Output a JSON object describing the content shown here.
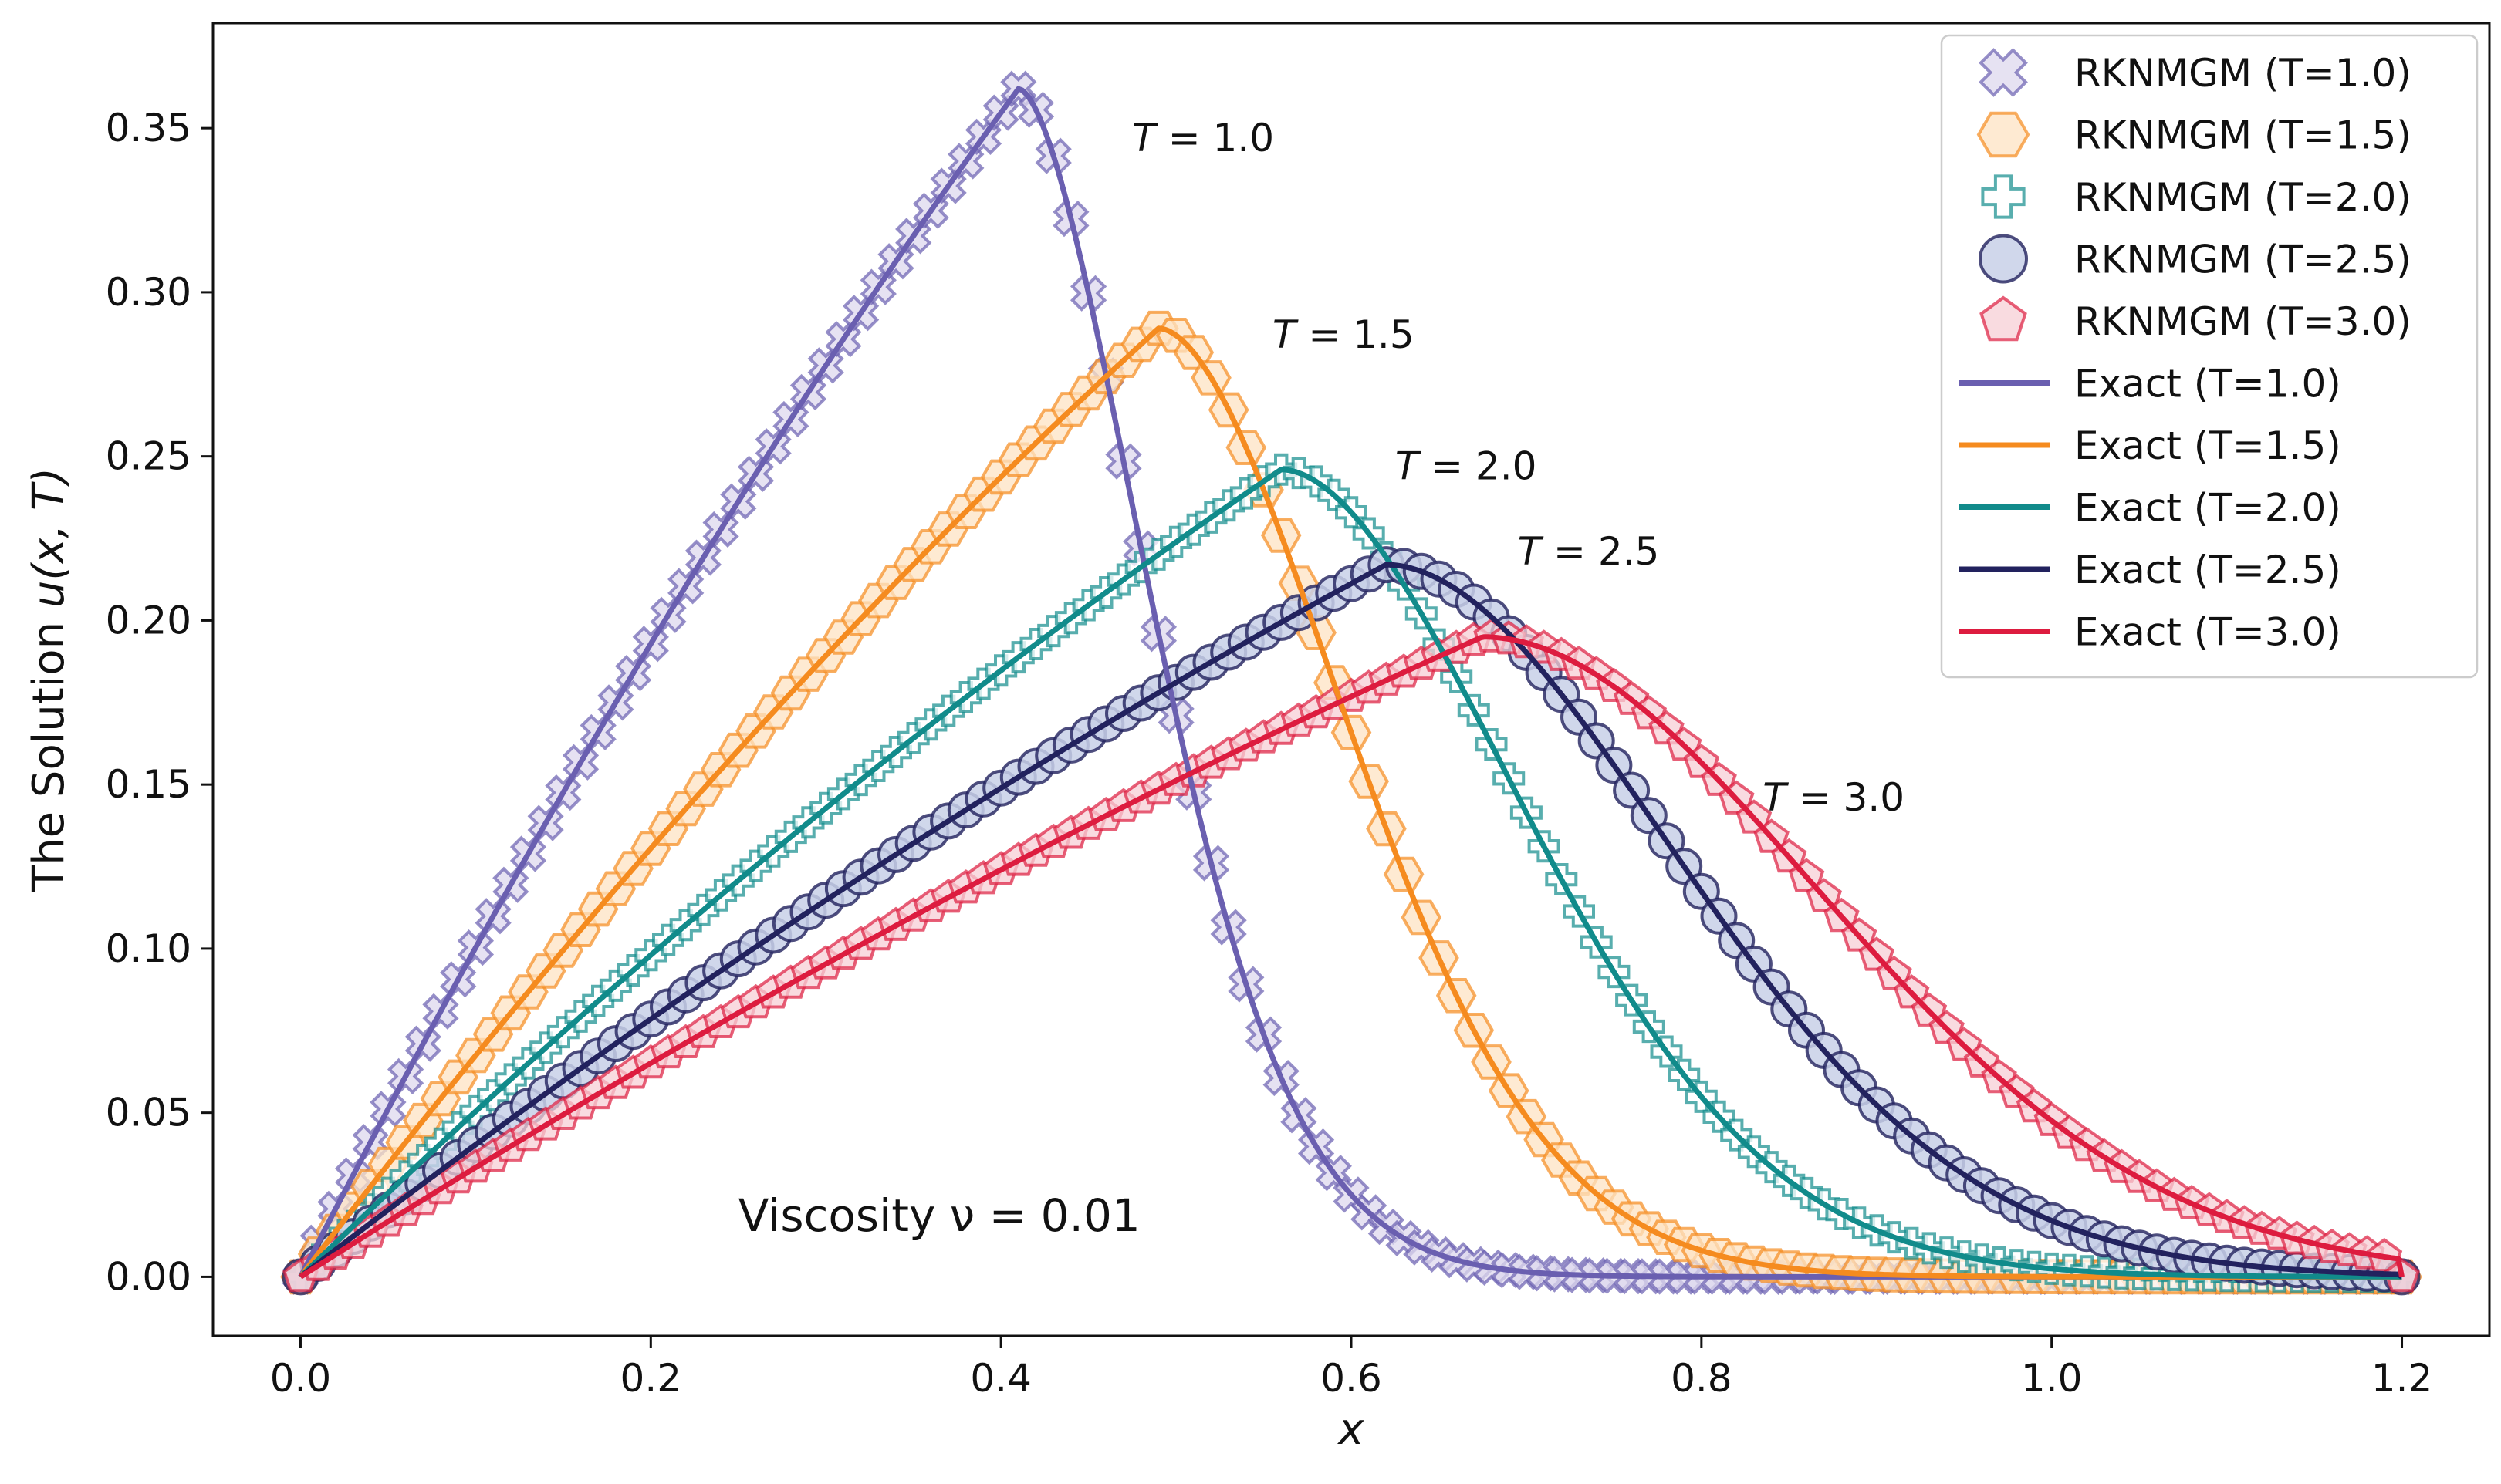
{
  "chart_data": {
    "type": "line",
    "title": "",
    "xlabel": "x",
    "ylabel_prefix": "The Solution ",
    "ylabel_math": "u(x, T)",
    "xlim": [
      -0.05,
      1.25
    ],
    "ylim": [
      -0.018,
      0.382
    ],
    "xticks": [
      0.0,
      0.2,
      0.4,
      0.6,
      0.8,
      1.0,
      1.2
    ],
    "yticks": [
      0.0,
      0.05,
      0.1,
      0.15,
      0.2,
      0.25,
      0.3,
      0.35
    ],
    "xtick_labels": [
      "0.0",
      "0.2",
      "0.4",
      "0.6",
      "0.8",
      "1.0",
      "1.2"
    ],
    "ytick_labels": [
      "0.00",
      "0.05",
      "0.10",
      "0.15",
      "0.20",
      "0.25",
      "0.30",
      "0.35"
    ],
    "grid": false,
    "legend_position": "top-right",
    "annotation": "Viscosity ν = 0.01",
    "series": [
      {
        "T": 1.0,
        "color": "#6a5fb0",
        "marker": "x-cross",
        "marker_fill": "#ddd8ee",
        "peak_x": 0.41,
        "peak_y": 0.362,
        "width_left": 0.39,
        "width_right": 0.09,
        "tail_exp": 1.7,
        "curve_label": "T = 1.0",
        "label_at": [
          0.475,
          0.343
        ]
      },
      {
        "T": 1.5,
        "color": "#f58b1f",
        "marker": "hexagon",
        "marker_fill": "#fde3c3",
        "peak_x": 0.49,
        "peak_y": 0.289,
        "width_left": 0.45,
        "width_right": 0.13,
        "tail_exp": 1.8,
        "curve_label": "T = 1.5",
        "label_at": [
          0.555,
          0.283
        ]
      },
      {
        "T": 2.0,
        "color": "#118b8b",
        "marker": "plus",
        "marker_fill": "#ffffff",
        "peak_x": 0.56,
        "peak_y": 0.246,
        "width_left": 0.52,
        "width_right": 0.165,
        "tail_exp": 1.85,
        "curve_label": "T = 2.0",
        "label_at": [
          0.625,
          0.243
        ]
      },
      {
        "T": 2.5,
        "color": "#22225e",
        "marker": "circle",
        "marker_fill": "#c8d0e8",
        "peak_x": 0.62,
        "peak_y": 0.217,
        "width_left": 0.58,
        "width_right": 0.2,
        "tail_exp": 1.9,
        "curve_label": "T = 2.5",
        "label_at": [
          0.695,
          0.217
        ]
      },
      {
        "T": 3.0,
        "color": "#dd1c3f",
        "marker": "pentagon",
        "marker_fill": "#f7cfd6",
        "peak_x": 0.675,
        "peak_y": 0.195,
        "width_left": 0.63,
        "width_right": 0.235,
        "tail_exp": 1.95,
        "curve_label": "T = 3.0",
        "label_at": [
          0.835,
          0.142
        ]
      }
    ],
    "legend": [
      {
        "label": "RKNMGM (T=1.0)",
        "kind": "marker",
        "series": 0
      },
      {
        "label": "RKNMGM (T=1.5)",
        "kind": "marker",
        "series": 1
      },
      {
        "label": "RKNMGM (T=2.0)",
        "kind": "marker",
        "series": 2
      },
      {
        "label": "RKNMGM (T=2.5)",
        "kind": "marker",
        "series": 3
      },
      {
        "label": "RKNMGM (T=3.0)",
        "kind": "marker",
        "series": 4
      },
      {
        "label": "Exact (T=1.0)",
        "kind": "line",
        "series": 0
      },
      {
        "label": "Exact (T=1.5)",
        "kind": "line",
        "series": 1
      },
      {
        "label": "Exact (T=2.0)",
        "kind": "line",
        "series": 2
      },
      {
        "label": "Exact (T=2.5)",
        "kind": "line",
        "series": 3
      },
      {
        "label": "Exact (T=3.0)",
        "kind": "line",
        "series": 4
      }
    ]
  }
}
